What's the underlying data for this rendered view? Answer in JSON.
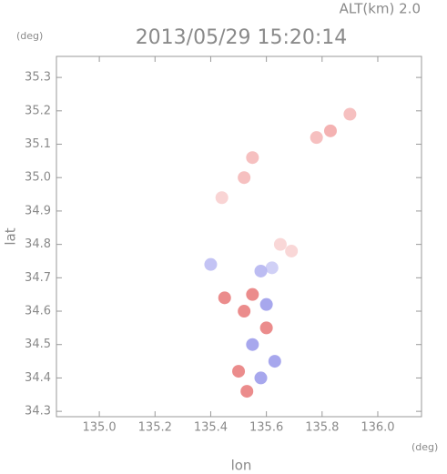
{
  "chart_data": {
    "type": "scatter",
    "title": "2013/05/29 15:20:14",
    "altitude_label": "ALT(km)  2.0",
    "y_unit": "(deg)",
    "x_unit": "(deg)",
    "x_label": "lon",
    "y_label": "lat",
    "x": [
      135.52,
      135.44,
      135.55,
      135.78,
      135.83,
      135.9,
      135.65,
      135.69,
      135.62,
      135.58,
      135.4,
      135.55,
      135.6,
      135.52,
      135.6,
      135.55,
      135.63,
      135.5,
      135.58,
      135.53,
      135.45
    ],
    "values": [
      35.0,
      34.94,
      35.06,
      35.12,
      35.14,
      35.19,
      34.8,
      34.78,
      34.73,
      34.72,
      34.74,
      34.65,
      34.62,
      34.6,
      34.55,
      34.5,
      34.45,
      34.42,
      34.4,
      34.36,
      34.64
    ],
    "colors": [
      "#f5b5b5",
      "#f8cccc",
      "#f5b5b5",
      "#f5b5b5",
      "#f2a5a5",
      "#f5b5b5",
      "#f8d0d0",
      "#f8d0d0",
      "#c8c8f4",
      "#b0b0f0",
      "#b8b8f2",
      "#e87878",
      "#9898ea",
      "#e87878",
      "#e87878",
      "#9898ea",
      "#9898ea",
      "#e87878",
      "#9898ea",
      "#e87878",
      "#e87878"
    ],
    "xlim": [
      134.846,
      136.157
    ],
    "ylim": [
      34.284,
      35.363
    ],
    "xticks": [
      {
        "value": 135.0,
        "label": "135.0"
      },
      {
        "value": 135.2,
        "label": "135.2"
      },
      {
        "value": 135.4,
        "label": "135.4"
      },
      {
        "value": 135.6,
        "label": "135.6"
      },
      {
        "value": 135.8,
        "label": "135.8"
      },
      {
        "value": 136.0,
        "label": "136.0"
      }
    ],
    "yticks": [
      34.3,
      34.4,
      34.5,
      34.6,
      34.7,
      34.8,
      34.9,
      {
        "value": 35.0,
        "label": "35.0"
      },
      35.1,
      35.2,
      35.3
    ]
  }
}
